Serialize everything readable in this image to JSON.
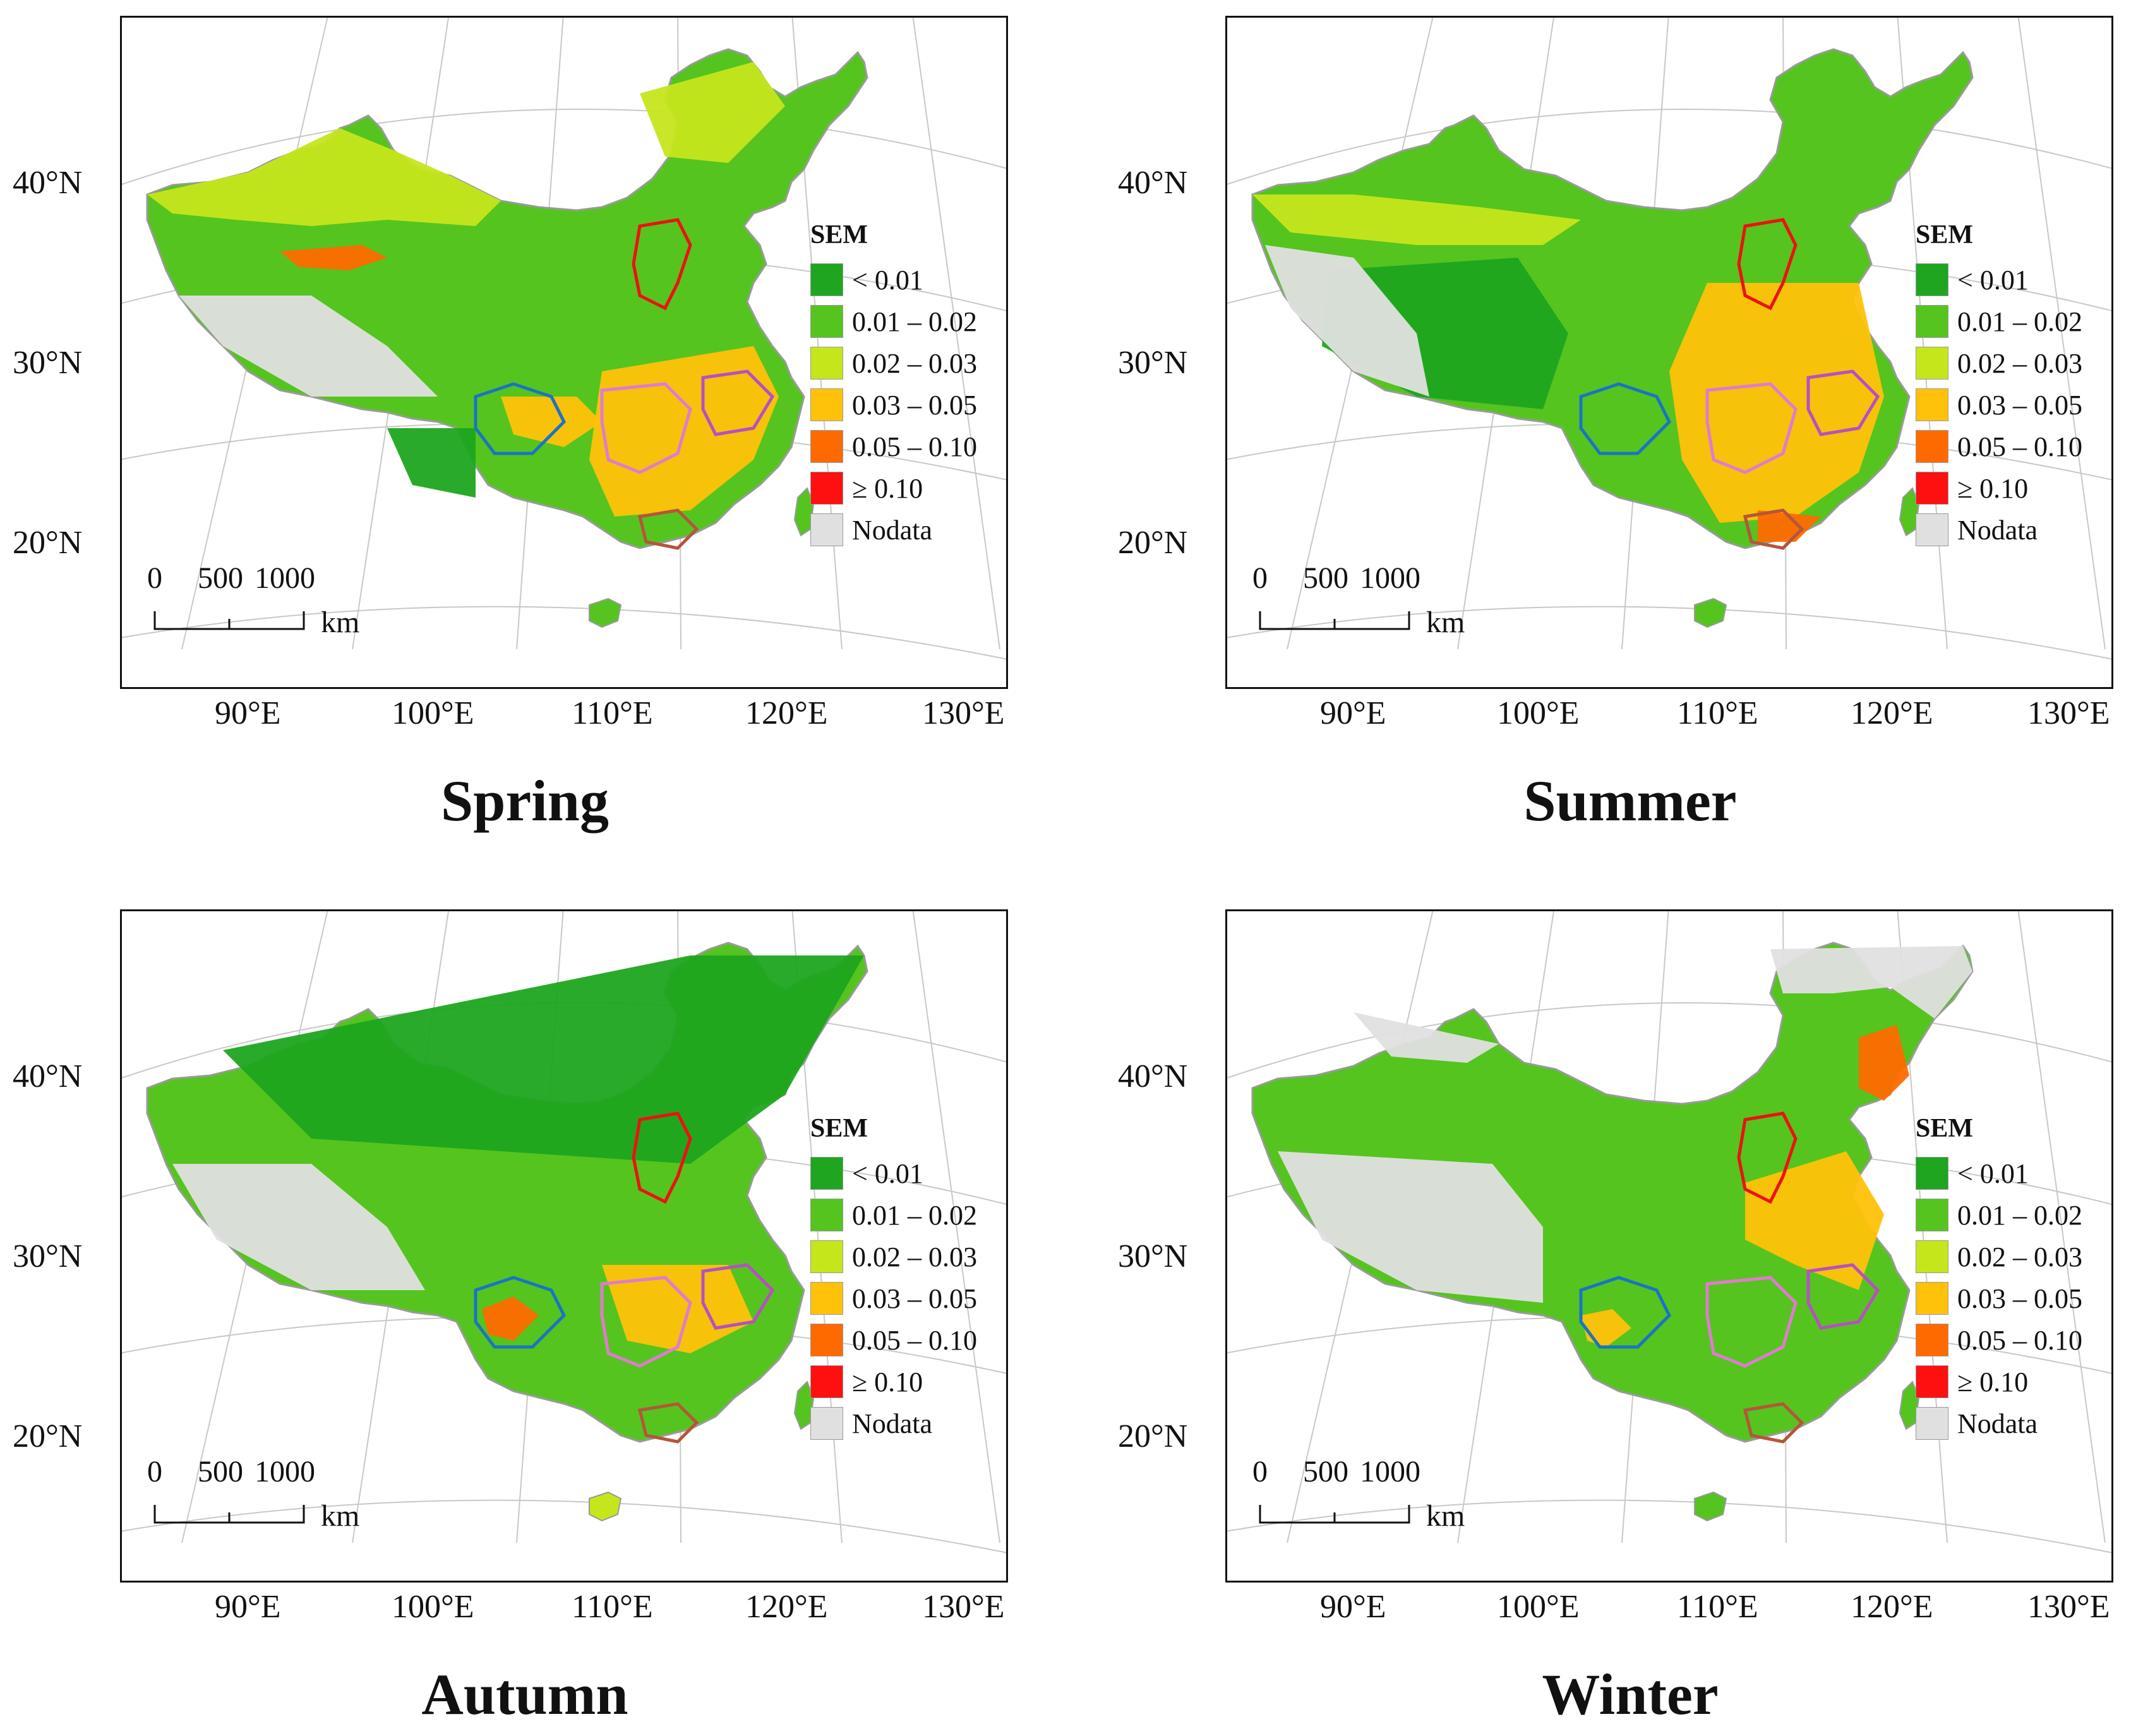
{
  "figure": {
    "panels": [
      {
        "title": "Spring"
      },
      {
        "title": "Summer"
      },
      {
        "title": "Autumn"
      },
      {
        "title": "Winter"
      }
    ],
    "lat_labels": [
      "40°N",
      "30°N",
      "20°N"
    ],
    "lon_labels": [
      "90°E",
      "100°E",
      "110°E",
      "120°E",
      "130°E"
    ],
    "legend": {
      "title": "SEM",
      "classes": [
        {
          "label": "< 0.01",
          "color": "#1fa51f"
        },
        {
          "label": "0.01 – 0.02",
          "color": "#55c41f"
        },
        {
          "label": "0.02 – 0.03",
          "color": "#c6e61c"
        },
        {
          "label": "0.03 – 0.05",
          "color": "#ffc20a"
        },
        {
          "label": "0.05 – 0.10",
          "color": "#ff6a00"
        },
        {
          "label": "≥ 0.10",
          "color": "#ff1010"
        },
        {
          "label": "Nodata",
          "color": "#e0e0e0"
        }
      ]
    },
    "scalebar": {
      "ticks": [
        "0",
        "500",
        "1000"
      ],
      "unit": "km"
    }
  }
}
